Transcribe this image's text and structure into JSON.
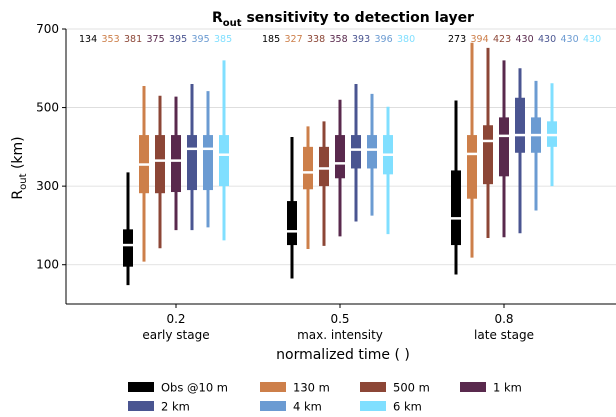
{
  "chart_data": {
    "type": "boxplot",
    "title_base": "R",
    "title_sub": "out",
    "title_rest": " sensitivity to detection layer",
    "ylabel_base": "R",
    "ylabel_sub": "out",
    "ylabel_rest": " (km)",
    "xlabel": "normalized time ( )",
    "ylim": [
      0,
      700
    ],
    "yticks": [
      100,
      300,
      500,
      700
    ],
    "grid": "horizontal",
    "legend_position": "bottom",
    "groups": [
      {
        "x_label": "0.2",
        "stage": "early stage"
      },
      {
        "x_label": "0.5",
        "stage": "max. intensity"
      },
      {
        "x_label": "0.8",
        "stage": "late stage"
      }
    ],
    "series": [
      {
        "name": "Obs @10 m",
        "color": "#000000",
        "counts": [
          134,
          185,
          273
        ],
        "stats": [
          {
            "whislo": 48,
            "q1": 95,
            "med": 150,
            "q3": 190,
            "whishi": 335
          },
          {
            "whislo": 65,
            "q1": 150,
            "med": 185,
            "q3": 262,
            "whishi": 425
          },
          {
            "whislo": 75,
            "q1": 150,
            "med": 218,
            "q3": 340,
            "whishi": 518
          }
        ]
      },
      {
        "name": "130 m",
        "color": "#cd7f4a",
        "counts": [
          353,
          327,
          394
        ],
        "stats": [
          {
            "whislo": 108,
            "q1": 282,
            "med": 355,
            "q3": 430,
            "whishi": 555
          },
          {
            "whislo": 140,
            "q1": 292,
            "med": 335,
            "q3": 400,
            "whishi": 452
          },
          {
            "whislo": 118,
            "q1": 268,
            "med": 382,
            "q3": 430,
            "whishi": 665
          }
        ]
      },
      {
        "name": "500 m",
        "color": "#8c4636",
        "counts": [
          381,
          338,
          423
        ],
        "stats": [
          {
            "whislo": 142,
            "q1": 282,
            "med": 365,
            "q3": 430,
            "whishi": 530
          },
          {
            "whislo": 148,
            "q1": 300,
            "med": 345,
            "q3": 400,
            "whishi": 465
          },
          {
            "whislo": 168,
            "q1": 305,
            "med": 415,
            "q3": 455,
            "whishi": 652
          }
        ]
      },
      {
        "name": "1 km",
        "color": "#59294d",
        "counts": [
          375,
          358,
          430
        ],
        "stats": [
          {
            "whislo": 188,
            "q1": 285,
            "med": 365,
            "q3": 430,
            "whishi": 528
          },
          {
            "whislo": 172,
            "q1": 320,
            "med": 358,
            "q3": 430,
            "whishi": 520
          },
          {
            "whislo": 170,
            "q1": 325,
            "med": 428,
            "q3": 475,
            "whishi": 620
          }
        ]
      },
      {
        "name": "2 km",
        "color": "#4a5591",
        "counts": [
          395,
          393,
          430
        ],
        "stats": [
          {
            "whislo": 188,
            "q1": 290,
            "med": 395,
            "q3": 430,
            "whishi": 560
          },
          {
            "whislo": 210,
            "q1": 345,
            "med": 393,
            "q3": 430,
            "whishi": 560
          },
          {
            "whislo": 180,
            "q1": 385,
            "med": 430,
            "q3": 525,
            "whishi": 600
          }
        ]
      },
      {
        "name": "4 km",
        "color": "#6b9bd2",
        "counts": [
          395,
          396,
          430
        ],
        "stats": [
          {
            "whislo": 195,
            "q1": 290,
            "med": 395,
            "q3": 430,
            "whishi": 542
          },
          {
            "whislo": 225,
            "q1": 345,
            "med": 393,
            "q3": 430,
            "whishi": 535
          },
          {
            "whislo": 238,
            "q1": 385,
            "med": 430,
            "q3": 475,
            "whishi": 568
          }
        ]
      },
      {
        "name": "6 km",
        "color": "#80dfff",
        "counts": [
          385,
          380,
          430
        ],
        "stats": [
          {
            "whislo": 162,
            "q1": 300,
            "med": 380,
            "q3": 430,
            "whishi": 620
          },
          {
            "whislo": 178,
            "q1": 330,
            "med": 380,
            "q3": 430,
            "whishi": 502
          },
          {
            "whislo": 300,
            "q1": 400,
            "med": 430,
            "q3": 465,
            "whishi": 562
          }
        ]
      }
    ]
  }
}
